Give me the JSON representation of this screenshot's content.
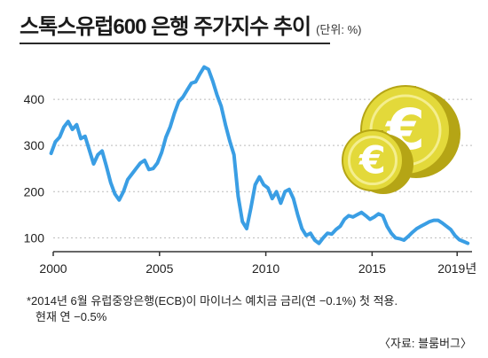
{
  "header": {
    "title": "스톡스유럽600 은행 주가지수 추이",
    "unit": "(단위: %)"
  },
  "footnote": {
    "line1": "*2014년 6월 유럽중앙은행(ECB)이 마이너스 예치금 금리(연 −0.1%) 첫 적용.",
    "line2": "현재 연 −0.5%"
  },
  "source": "〈자료: 블룸버그〉",
  "colors": {
    "line": "#3a9ee4",
    "coin_face": "#e3d93a",
    "coin_edge": "#b5a515",
    "axis": "#333333",
    "grid": "#bbbbbb"
  },
  "chart_data": {
    "type": "line",
    "title": "스톡스유럽600 은행 주가지수 추이",
    "ylabel": "단위: %",
    "xlim": [
      2000,
      2019.7
    ],
    "ylim": [
      70,
      500
    ],
    "yticks": [
      100,
      200,
      300,
      400
    ],
    "xticks": [
      2000,
      2005,
      2010,
      2015,
      2019
    ],
    "xtick_labels": [
      "2000",
      "2005",
      "2010",
      "2015",
      "2019년"
    ],
    "grid": "horizontal",
    "series": [
      {
        "x": [
          1999.9,
          2000.1,
          2000.3,
          2000.5,
          2000.7,
          2000.9,
          2001.1,
          2001.3,
          2001.5,
          2001.7,
          2001.9,
          2002.1,
          2002.3,
          2002.5,
          2002.7,
          2002.9,
          2003.1,
          2003.3,
          2003.5,
          2003.7,
          2003.9,
          2004.1,
          2004.3,
          2004.5,
          2004.7,
          2004.9,
          2005.1,
          2005.3,
          2005.5,
          2005.7,
          2005.9,
          2006.1,
          2006.3,
          2006.5,
          2006.7,
          2006.9,
          2007.1,
          2007.3,
          2007.5,
          2007.7,
          2007.9,
          2008.1,
          2008.3,
          2008.5,
          2008.7,
          2008.9,
          2009.1,
          2009.3,
          2009.5,
          2009.7,
          2009.9,
          2010.1,
          2010.3,
          2010.5,
          2010.7,
          2010.9,
          2011.1,
          2011.3,
          2011.5,
          2011.7,
          2011.9,
          2012.1,
          2012.3,
          2012.5,
          2012.7,
          2012.9,
          2013.1,
          2013.3,
          2013.5,
          2013.7,
          2013.9,
          2014.1,
          2014.3,
          2014.5,
          2014.7,
          2014.9,
          2015.1,
          2015.3,
          2015.5,
          2015.7,
          2015.9,
          2016.1,
          2016.3,
          2016.5,
          2016.7,
          2016.9,
          2017.1,
          2017.3,
          2017.5,
          2017.7,
          2017.9,
          2018.1,
          2018.3,
          2018.5,
          2018.7,
          2018.9,
          2019.1,
          2019.3,
          2019.5
        ],
        "y": [
          283,
          308,
          318,
          340,
          352,
          335,
          345,
          315,
          320,
          290,
          260,
          280,
          288,
          255,
          220,
          195,
          182,
          200,
          226,
          238,
          250,
          262,
          268,
          248,
          250,
          262,
          285,
          318,
          340,
          370,
          395,
          405,
          420,
          435,
          438,
          455,
          470,
          465,
          440,
          410,
          385,
          345,
          310,
          280,
          190,
          135,
          120,
          165,
          215,
          232,
          215,
          208,
          185,
          200,
          175,
          200,
          205,
          185,
          150,
          120,
          105,
          110,
          95,
          88,
          100,
          110,
          108,
          118,
          125,
          140,
          148,
          145,
          150,
          155,
          148,
          140,
          145,
          152,
          148,
          125,
          110,
          100,
          98,
          95,
          103,
          112,
          120,
          125,
          130,
          135,
          138,
          138,
          132,
          125,
          118,
          105,
          96,
          92,
          88
        ]
      }
    ]
  }
}
